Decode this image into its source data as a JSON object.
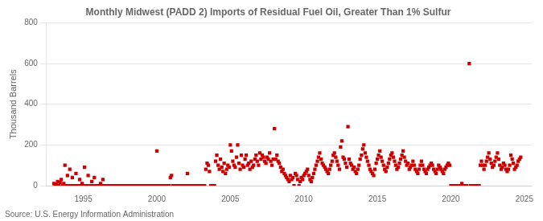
{
  "chart_data": {
    "type": "scatter",
    "title": "Monthly Midwest (PADD 2) Imports of Residual Fuel Oil, Greater Than 1% Sulfur",
    "ylabel": "Thousand Barrels",
    "annotations": [
      "Source: U.S. Energy Information Administration"
    ],
    "color": "#CC0000",
    "marker": "square",
    "grid": "y",
    "xlim": [
      1992.5,
      2025.5
    ],
    "xticks": [
      1995,
      2000,
      2005,
      2010,
      2015,
      2020,
      2025
    ],
    "ylim": [
      0,
      800
    ],
    "yticks": [
      0,
      200,
      400,
      600,
      800
    ],
    "x": [
      1993.0,
      1993.08,
      1993.17,
      1993.25,
      1993.33,
      1993.42,
      1993.5,
      1993.58,
      1993.67,
      1993.75,
      1993.83,
      1993.92,
      1994.0,
      1994.08,
      1994.17,
      1994.25,
      1994.33,
      1994.42,
      1994.5,
      1994.58,
      1994.67,
      1994.75,
      1994.83,
      1994.92,
      1995.0,
      1995.08,
      1995.17,
      1995.25,
      1995.33,
      1995.42,
      1995.5,
      1995.58,
      1995.67,
      1995.75,
      1995.83,
      1995.92,
      1996.0,
      1996.08,
      1996.17,
      1996.25,
      1996.33,
      1996.42,
      1996.5,
      1996.58,
      1996.67,
      1996.75,
      1996.83,
      1996.92,
      1997.0,
      1997.08,
      1997.17,
      1997.25,
      1997.33,
      1997.42,
      1997.5,
      1997.58,
      1997.67,
      1997.75,
      1997.83,
      1997.92,
      1998.0,
      1998.08,
      1998.17,
      1998.25,
      1998.33,
      1998.42,
      1998.5,
      1998.58,
      1998.67,
      1998.75,
      1998.83,
      1998.92,
      1999.0,
      1999.08,
      1999.17,
      1999.25,
      1999.33,
      1999.42,
      1999.5,
      1999.58,
      1999.67,
      1999.75,
      1999.83,
      1999.92,
      2000.0,
      2000.08,
      2000.17,
      2000.25,
      2000.33,
      2000.42,
      2000.5,
      2000.58,
      2000.67,
      2000.75,
      2000.83,
      2000.92,
      2001.0,
      2001.08,
      2001.17,
      2001.25,
      2001.33,
      2001.42,
      2001.5,
      2001.58,
      2001.67,
      2001.75,
      2001.83,
      2001.92,
      2002.0,
      2002.08,
      2002.17,
      2002.25,
      2002.33,
      2002.42,
      2002.5,
      2002.58,
      2002.67,
      2002.75,
      2002.83,
      2002.92,
      2003.0,
      2003.08,
      2003.17,
      2003.25,
      2003.33,
      2003.42,
      2003.5,
      2003.58,
      2003.67,
      2003.75,
      2003.83,
      2003.92,
      2004.0,
      2004.08,
      2004.17,
      2004.25,
      2004.33,
      2004.42,
      2004.5,
      2004.58,
      2004.67,
      2004.75,
      2004.83,
      2004.92,
      2005.0,
      2005.08,
      2005.17,
      2005.25,
      2005.33,
      2005.42,
      2005.5,
      2005.58,
      2005.67,
      2005.75,
      2005.83,
      2005.92,
      2006.0,
      2006.08,
      2006.17,
      2006.25,
      2006.33,
      2006.42,
      2006.5,
      2006.58,
      2006.67,
      2006.75,
      2006.83,
      2006.92,
      2007.0,
      2007.08,
      2007.17,
      2007.25,
      2007.33,
      2007.42,
      2007.5,
      2007.58,
      2007.67,
      2007.75,
      2007.83,
      2007.92,
      2008.0,
      2008.08,
      2008.17,
      2008.25,
      2008.33,
      2008.42,
      2008.5,
      2008.58,
      2008.67,
      2008.75,
      2008.83,
      2008.92,
      2009.0,
      2009.08,
      2009.17,
      2009.25,
      2009.33,
      2009.42,
      2009.5,
      2009.58,
      2009.67,
      2009.75,
      2009.83,
      2009.92,
      2010.0,
      2010.08,
      2010.17,
      2010.25,
      2010.33,
      2010.42,
      2010.5,
      2010.58,
      2010.67,
      2010.75,
      2010.83,
      2010.92,
      2011.0,
      2011.08,
      2011.17,
      2011.25,
      2011.33,
      2011.42,
      2011.5,
      2011.58,
      2011.67,
      2011.75,
      2011.83,
      2011.92,
      2012.0,
      2012.08,
      2012.17,
      2012.25,
      2012.33,
      2012.42,
      2012.5,
      2012.58,
      2012.67,
      2012.75,
      2012.83,
      2012.92,
      2013.0,
      2013.08,
      2013.17,
      2013.25,
      2013.33,
      2013.42,
      2013.5,
      2013.58,
      2013.67,
      2013.75,
      2013.83,
      2013.92,
      2014.0,
      2014.08,
      2014.17,
      2014.25,
      2014.33,
      2014.42,
      2014.5,
      2014.58,
      2014.67,
      2014.75,
      2014.83,
      2014.92,
      2015.0,
      2015.08,
      2015.17,
      2015.25,
      2015.33,
      2015.42,
      2015.5,
      2015.58,
      2015.67,
      2015.75,
      2015.83,
      2015.92,
      2016.0,
      2016.08,
      2016.17,
      2016.25,
      2016.33,
      2016.42,
      2016.5,
      2016.58,
      2016.67,
      2016.75,
      2016.83,
      2016.92,
      2017.0,
      2017.08,
      2017.17,
      2017.25,
      2017.33,
      2017.42,
      2017.5,
      2017.58,
      2017.67,
      2017.75,
      2017.83,
      2017.92,
      2018.0,
      2018.08,
      2018.17,
      2018.25,
      2018.33,
      2018.42,
      2018.5,
      2018.58,
      2018.67,
      2018.75,
      2018.83,
      2018.92,
      2019.0,
      2019.08,
      2019.17,
      2019.25,
      2019.33,
      2019.42,
      2019.5,
      2019.58,
      2019.67,
      2019.75,
      2019.83,
      2019.92,
      2020.0,
      2020.08,
      2020.17,
      2020.25,
      2020.33,
      2020.42,
      2020.5,
      2020.58,
      2020.67,
      2020.75,
      2020.83,
      2020.92,
      2021.0,
      2021.08,
      2021.25,
      2021.33,
      2021.42,
      2021.5,
      2021.58,
      2021.67,
      2021.75,
      2021.83,
      2021.92,
      2022.0,
      2022.08,
      2022.17,
      2022.25,
      2022.33,
      2022.42,
      2022.5,
      2022.58,
      2022.67,
      2022.75,
      2022.83,
      2022.92,
      2023.0,
      2023.08,
      2023.17,
      2023.25,
      2023.33,
      2023.42,
      2023.5,
      2023.58,
      2023.67,
      2023.75,
      2023.83,
      2023.92,
      2024.0,
      2024.08,
      2024.17,
      2024.25,
      2024.33,
      2024.42,
      2024.5,
      2024.58,
      2024.67,
      2024.75
    ],
    "values": [
      10,
      0,
      5,
      20,
      0,
      15,
      30,
      0,
      10,
      100,
      0,
      50,
      0,
      80,
      0,
      40,
      0,
      0,
      60,
      0,
      0,
      30,
      0,
      10,
      0,
      90,
      0,
      0,
      50,
      0,
      0,
      20,
      0,
      40,
      0,
      0,
      0,
      0,
      10,
      0,
      30,
      0,
      0,
      0,
      0,
      0,
      0,
      0,
      0,
      0,
      0,
      0,
      0,
      0,
      0,
      0,
      0,
      0,
      0,
      0,
      0,
      0,
      0,
      0,
      0,
      0,
      0,
      0,
      0,
      0,
      0,
      0,
      0,
      0,
      0,
      0,
      0,
      0,
      0,
      0,
      0,
      0,
      0,
      0,
      170,
      0,
      0,
      0,
      0,
      0,
      0,
      0,
      0,
      0,
      0,
      40,
      50,
      0,
      0,
      0,
      0,
      0,
      0,
      0,
      0,
      0,
      0,
      0,
      0,
      60,
      0,
      0,
      0,
      0,
      0,
      0,
      0,
      0,
      0,
      0,
      0,
      0,
      0,
      0,
      80,
      110,
      100,
      70,
      0,
      0,
      0,
      0,
      120,
      150,
      100,
      80,
      130,
      90,
      70,
      110,
      60,
      80,
      100,
      90,
      200,
      170,
      120,
      100,
      90,
      140,
      200,
      110,
      80,
      150,
      100,
      90,
      130,
      150,
      100,
      110,
      80,
      120,
      90,
      100,
      130,
      150,
      120,
      100,
      160,
      130,
      150,
      140,
      120,
      110,
      140,
      130,
      160,
      120,
      100,
      130,
      280,
      130,
      150,
      120,
      110,
      90,
      70,
      80,
      60,
      50,
      40,
      30,
      20,
      50,
      30,
      40,
      0,
      60,
      50,
      30,
      0,
      20,
      40,
      30,
      50,
      60,
      70,
      80,
      50,
      30,
      20,
      40,
      60,
      80,
      100,
      120,
      140,
      160,
      130,
      110,
      100,
      90,
      80,
      70,
      60,
      80,
      100,
      120,
      150,
      160,
      140,
      120,
      100,
      80,
      190,
      220,
      140,
      130,
      110,
      90,
      290,
      130,
      110,
      100,
      80,
      90,
      70,
      60,
      80,
      100,
      130,
      150,
      180,
      200,
      160,
      140,
      120,
      100,
      80,
      70,
      60,
      50,
      80,
      110,
      130,
      150,
      170,
      140,
      120,
      100,
      80,
      70,
      90,
      110,
      130,
      150,
      160,
      140,
      120,
      100,
      80,
      90,
      110,
      130,
      150,
      170,
      140,
      120,
      100,
      110,
      80,
      90,
      100,
      120,
      100,
      80,
      70,
      60,
      80,
      100,
      120,
      100,
      80,
      70,
      60,
      80,
      90,
      100,
      110,
      100,
      80,
      70,
      60,
      80,
      100,
      90,
      80,
      70,
      60,
      80,
      90,
      100,
      110,
      100,
      0,
      0,
      0,
      0,
      0,
      0,
      0,
      0,
      0,
      10,
      0,
      0,
      0,
      0,
      600,
      0,
      0,
      0,
      0,
      0,
      0,
      0,
      0,
      100,
      120,
      100,
      80,
      100,
      120,
      140,
      160,
      130,
      110,
      90,
      100,
      120,
      140,
      160,
      130,
      100,
      80,
      90,
      110,
      100,
      80,
      70,
      80,
      100,
      150,
      130,
      110,
      80,
      90,
      100,
      120,
      130,
      140
    ]
  }
}
